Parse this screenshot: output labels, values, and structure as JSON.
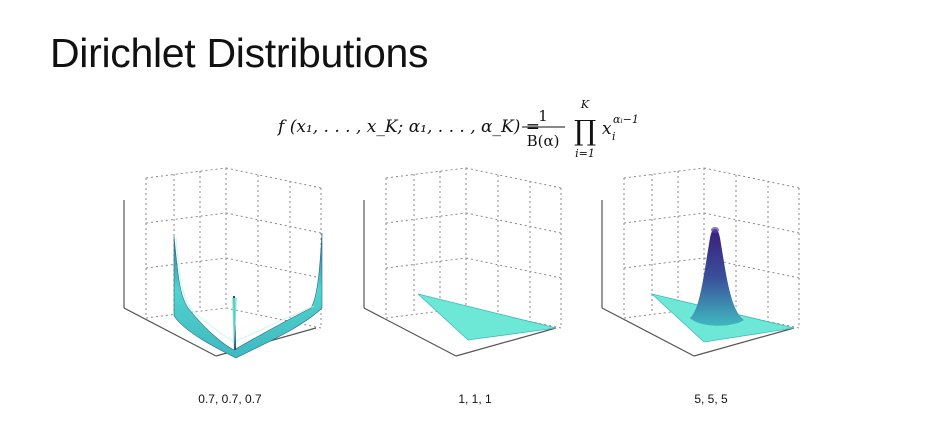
{
  "slide": {
    "title": "Dirichlet Distributions"
  },
  "formula": {
    "lhs": "f (x₁, . . . , x_K; α₁, . . . , α_K) =",
    "numerator": "1",
    "denominator": "B(α)",
    "product_upper": "K",
    "product_lower": "i=1",
    "term_base": "x",
    "term_sub": "i",
    "term_sup": "αᵢ−1"
  },
  "plots": [
    {
      "caption": "0.7, 0.7, 0.7"
    },
    {
      "caption": "1, 1, 1"
    },
    {
      "caption": "5, 5, 5"
    }
  ],
  "colors": {
    "surface_light": "#6ee8d6",
    "surface_mid": "#3fb9bf",
    "surface_dark": "#2f6f9a",
    "peak_purple": "#3a1f7a"
  }
}
